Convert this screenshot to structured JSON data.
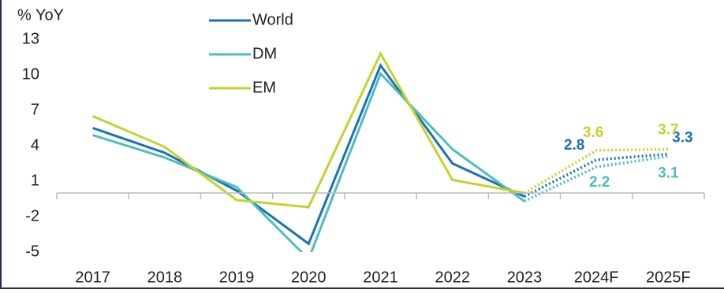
{
  "chart_data": {
    "type": "line",
    "y_axis_label": "% YoY",
    "categories": [
      "2017",
      "2018",
      "2019",
      "2020",
      "2021",
      "2022",
      "2023",
      "2024F",
      "2025F"
    ],
    "series": [
      {
        "name": "World",
        "color": "#1a72b5",
        "values": [
          5.5,
          3.4,
          0.2,
          -4.3,
          10.8,
          2.5,
          -0.3,
          2.8,
          3.3
        ]
      },
      {
        "name": "DM",
        "color": "#4dbdbd",
        "values": [
          4.9,
          3.0,
          0.5,
          -5.6,
          10.1,
          3.7,
          -0.7,
          2.2,
          3.1
        ]
      },
      {
        "name": "EM",
        "color": "#c6d22c",
        "values": [
          6.5,
          3.9,
          -0.6,
          -1.2,
          11.8,
          1.1,
          0.0,
          3.6,
          3.7
        ]
      }
    ],
    "ylim": [
      -5,
      13
    ],
    "yticks": [
      -5,
      -2,
      1,
      4,
      7,
      10,
      13
    ],
    "grid": false,
    "legend": "top"
  }
}
